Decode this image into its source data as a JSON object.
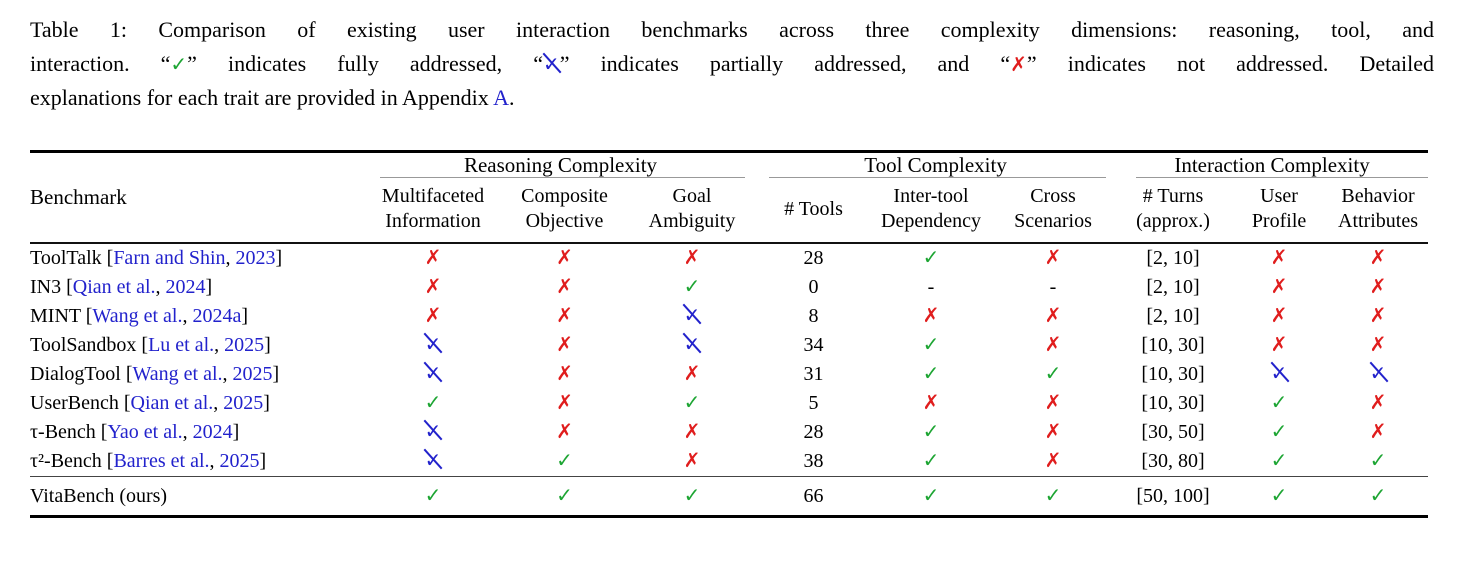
{
  "link_color": "#2222cc",
  "caption": {
    "line1": "Table 1: Comparison of existing user interaction benchmarks across three complexity dimensions: reasoning, tool, and",
    "line2_a": "interaction. “",
    "line2_b": "” indicates fully addressed, “",
    "line2_c": "” indicates partially addressed, and “",
    "line2_d": "” indicates not addressed. Detailed",
    "line3_a": "explanations for each trait are provided in Appendix ",
    "appendix_link": "A",
    "line3_b": "."
  },
  "marks": {
    "check": {
      "glyph": "✓",
      "color": "#1da533"
    },
    "partial": {
      "glyph": "✓",
      "color": "#2222cc"
    },
    "cross": {
      "glyph": "✗",
      "color": "#e01d1d"
    },
    "dash": {
      "glyph": "-",
      "color": "#000000"
    }
  },
  "table": {
    "benchmark_header": "Benchmark",
    "citation_open": " [",
    "citation_sep": ", ",
    "citation_close": "]",
    "groups": [
      {
        "label": "Reasoning Complexity",
        "columns": [
          {
            "line1": "Multifaceted",
            "line2": "Information"
          },
          {
            "line1": "Composite",
            "line2": "Objective"
          },
          {
            "line1": "Goal",
            "line2": "Ambiguity"
          }
        ]
      },
      {
        "label": "Tool Complexity",
        "columns": [
          {
            "line1": "# Tools",
            "line2": ""
          },
          {
            "line1": "Inter-tool",
            "line2": "Dependency"
          },
          {
            "line1": "Cross",
            "line2": "Scenarios"
          }
        ]
      },
      {
        "label": "Interaction Complexity",
        "columns": [
          {
            "line1": "# Turns",
            "line2": "(approx.)"
          },
          {
            "line1": "User",
            "line2": "Profile"
          },
          {
            "line1": "Behavior",
            "line2": "Attributes"
          }
        ]
      }
    ],
    "rows": [
      {
        "name": "ToolTalk",
        "author": "Farn and Shin",
        "year": "2023",
        "values": [
          "cross",
          "cross",
          "cross",
          "28",
          "check",
          "cross",
          "[2, 10]",
          "cross",
          "cross"
        ]
      },
      {
        "name": "IN3",
        "author": "Qian et al.",
        "year": "2024",
        "values": [
          "cross",
          "cross",
          "check",
          "0",
          "dash",
          "dash",
          "[2, 10]",
          "cross",
          "cross"
        ]
      },
      {
        "name": "MINT",
        "author": "Wang et al.",
        "year": "2024a",
        "values": [
          "cross",
          "cross",
          "partial",
          "8",
          "cross",
          "cross",
          "[2, 10]",
          "cross",
          "cross"
        ]
      },
      {
        "name": "ToolSandbox",
        "author": "Lu et al.",
        "year": "2025",
        "values": [
          "partial",
          "cross",
          "partial",
          "34",
          "check",
          "cross",
          "[10, 30]",
          "cross",
          "cross"
        ]
      },
      {
        "name": "DialogTool",
        "author": "Wang et al.",
        "year": "2025",
        "values": [
          "partial",
          "cross",
          "cross",
          "31",
          "check",
          "check",
          "[10, 30]",
          "partial",
          "partial"
        ]
      },
      {
        "name": "UserBench",
        "author": "Qian et al.",
        "year": "2025",
        "values": [
          "check",
          "cross",
          "check",
          "5",
          "cross",
          "cross",
          "[10, 30]",
          "check",
          "cross"
        ]
      },
      {
        "name": "τ-Bench",
        "author": "Yao et al.",
        "year": "2024",
        "values": [
          "partial",
          "cross",
          "cross",
          "28",
          "check",
          "cross",
          "[30, 50]",
          "check",
          "cross"
        ]
      },
      {
        "name": "τ²-Bench",
        "author": "Barres et al.",
        "year": "2025",
        "values": [
          "partial",
          "check",
          "cross",
          "38",
          "check",
          "cross",
          "[30, 80]",
          "check",
          "check"
        ]
      },
      {
        "name": "VitaBench (ours)",
        "author": null,
        "year": null,
        "values": [
          "check",
          "check",
          "check",
          "66",
          "check",
          "check",
          "[50, 100]",
          "check",
          "check"
        ]
      }
    ]
  }
}
